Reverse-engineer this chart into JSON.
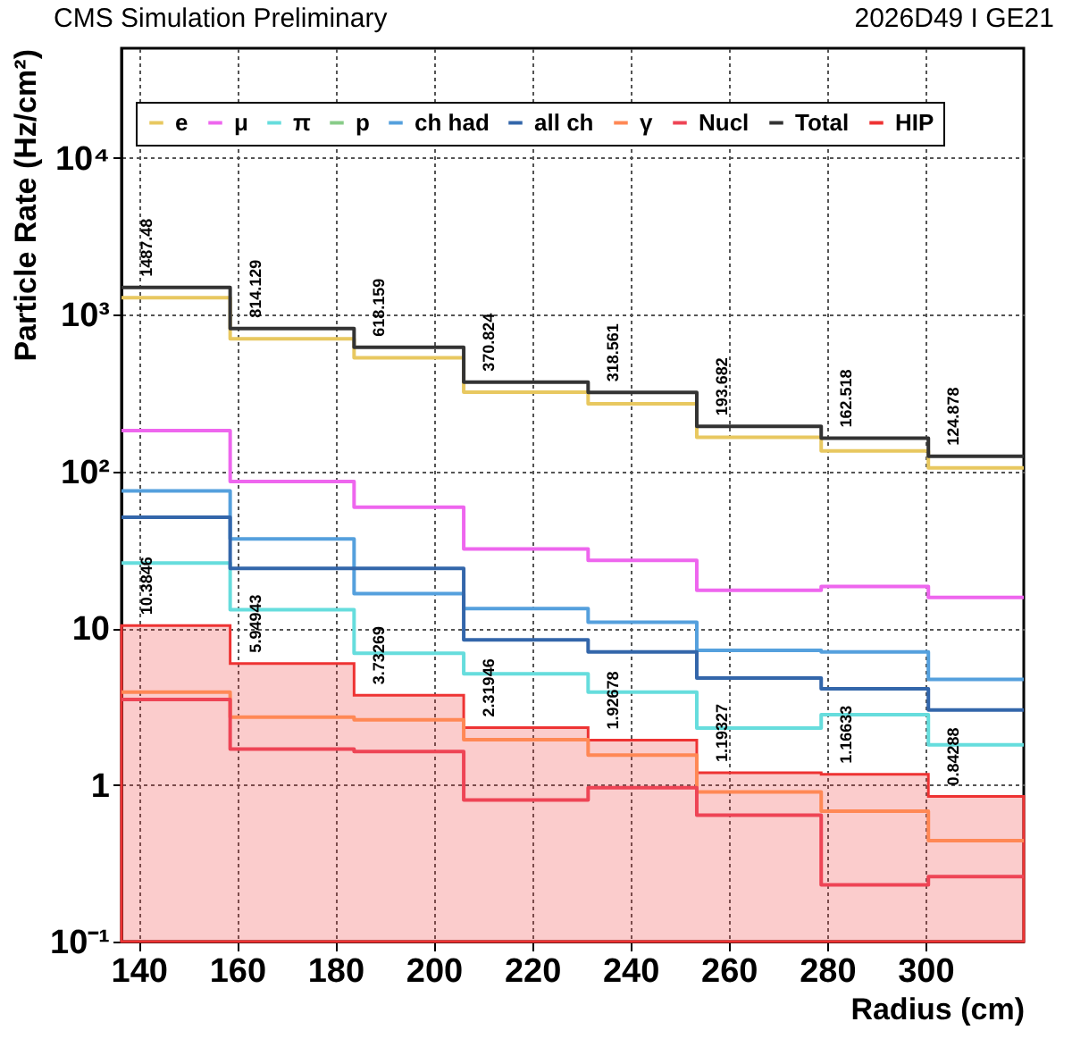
{
  "chart_data": {
    "type": "step",
    "title": "CMS Simulation Preliminary",
    "subtitle": "2026D49 I GE21",
    "xlabel": "Radius (cm)",
    "ylabel": "Particle Rate (Hz/cm²)",
    "x": [
      136.5,
      158.6,
      183.8,
      206.1,
      231.4,
      253.5,
      278.8,
      300.6,
      320
    ],
    "series": [
      {
        "name": "e",
        "color": "#e8c860",
        "values": [
          1280,
          700,
          530,
          320,
          270,
          165,
          135,
          105,
          105
        ]
      },
      {
        "name": "μ",
        "color": "#ee66ee",
        "values": [
          182,
          86,
          59,
          32,
          27,
          17.4,
          18.4,
          15.7,
          15.7
        ]
      },
      {
        "name": "π",
        "color": "#66dddd",
        "values": [
          26,
          13.1,
          6.9,
          5.1,
          3.9,
          2.3,
          2.8,
          1.8,
          1.8
        ]
      },
      {
        "name": "p",
        "color": "#88cc88",
        "values": [
          null,
          null,
          null,
          null,
          null,
          null,
          null,
          null,
          null
        ]
      },
      {
        "name": "ch had",
        "color": "#55a0dd",
        "values": [
          75,
          37,
          16.6,
          13.3,
          10.9,
          7.2,
          7.05,
          4.7,
          4.7
        ]
      },
      {
        "name": "all ch",
        "color": "#3366aa",
        "values": [
          51,
          24,
          24,
          8.4,
          7.05,
          4.8,
          4.1,
          3.0,
          3.0
        ]
      },
      {
        "name": "γ",
        "color": "#ff8855",
        "values": [
          3.9,
          2.7,
          2.6,
          1.94,
          1.55,
          0.9,
          0.68,
          0.44,
          0.44
        ]
      },
      {
        "name": "Nucl",
        "color": "#ee4455",
        "values": [
          3.5,
          1.69,
          1.63,
          0.8,
          0.96,
          0.64,
          0.23,
          0.26,
          0.26
        ]
      },
      {
        "name": "Total",
        "color": "#333333",
        "values": [
          1487.48,
          814.129,
          618.159,
          370.824,
          318.561,
          193.682,
          162.518,
          124.878,
          124.878
        ],
        "value_labels": [
          "1487.48",
          "814.129",
          "618.159",
          "370.824",
          "318.561",
          "193.682",
          "162.518",
          "124.878",
          null
        ]
      },
      {
        "name": "HIP",
        "type": "area",
        "color": "#ee3333",
        "values": [
          10.3846,
          5.94943,
          3.73269,
          2.31946,
          1.92678,
          1.19327,
          1.16633,
          0.84288,
          0.84288
        ],
        "value_labels": [
          "10.3846",
          "5.94943",
          "3.73269",
          "2.31946",
          "1.92678",
          "1.19327",
          "1.16633",
          "0.84288",
          null
        ]
      }
    ],
    "xlim": [
      136.5,
      320
    ],
    "xticks": [
      140,
      160,
      180,
      200,
      220,
      240,
      260,
      280,
      300
    ],
    "ylim": [
      0.1,
      50000
    ],
    "log": true,
    "yticks": [
      {
        "value": 0.1,
        "label": "10⁻¹"
      },
      1,
      10,
      {
        "value": 100,
        "label": "10²"
      },
      {
        "value": 1000,
        "label": "10³"
      },
      {
        "value": 10000,
        "label": "10⁴"
      }
    ],
    "grid": true,
    "legend": "top"
  }
}
